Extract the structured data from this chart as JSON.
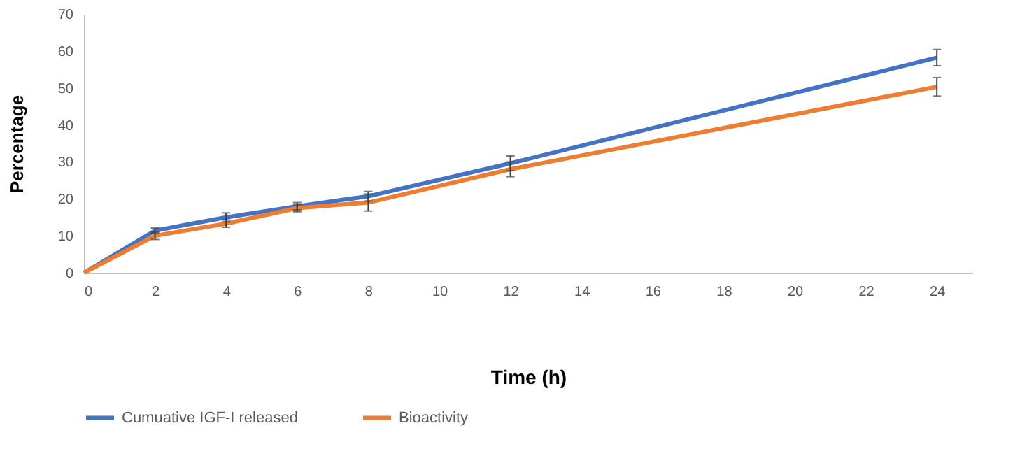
{
  "chart_data": {
    "type": "line",
    "xlabel": "Time (h)",
    "ylabel": "Percentage",
    "x": [
      0,
      2,
      4,
      6,
      8,
      12,
      24
    ],
    "series": [
      {
        "name": "Cumuative IGF-I released",
        "color": "#4472c4",
        "values": [
          0,
          11.4,
          15,
          18,
          20.7,
          29.6,
          58.2
        ],
        "errors": [
          null,
          0.7,
          1.2,
          1,
          1.3,
          2,
          2.2
        ]
      },
      {
        "name": "Bioactivity",
        "color": "#ed7d31",
        "values": [
          0,
          10,
          13.3,
          17.5,
          19,
          28,
          50.3
        ],
        "errors": [
          null,
          1,
          1,
          1,
          2.3,
          2,
          2.5
        ]
      }
    ],
    "xlim": [
      0,
      25
    ],
    "xticks": [
      0,
      2,
      4,
      6,
      8,
      10,
      12,
      14,
      16,
      18,
      20,
      22,
      24
    ],
    "ylim": [
      0,
      70
    ],
    "yticks": [
      0,
      10,
      20,
      30,
      40,
      50,
      60,
      70
    ],
    "grid": false,
    "legend": "bottom",
    "marker": "none",
    "line_style": "solid"
  }
}
